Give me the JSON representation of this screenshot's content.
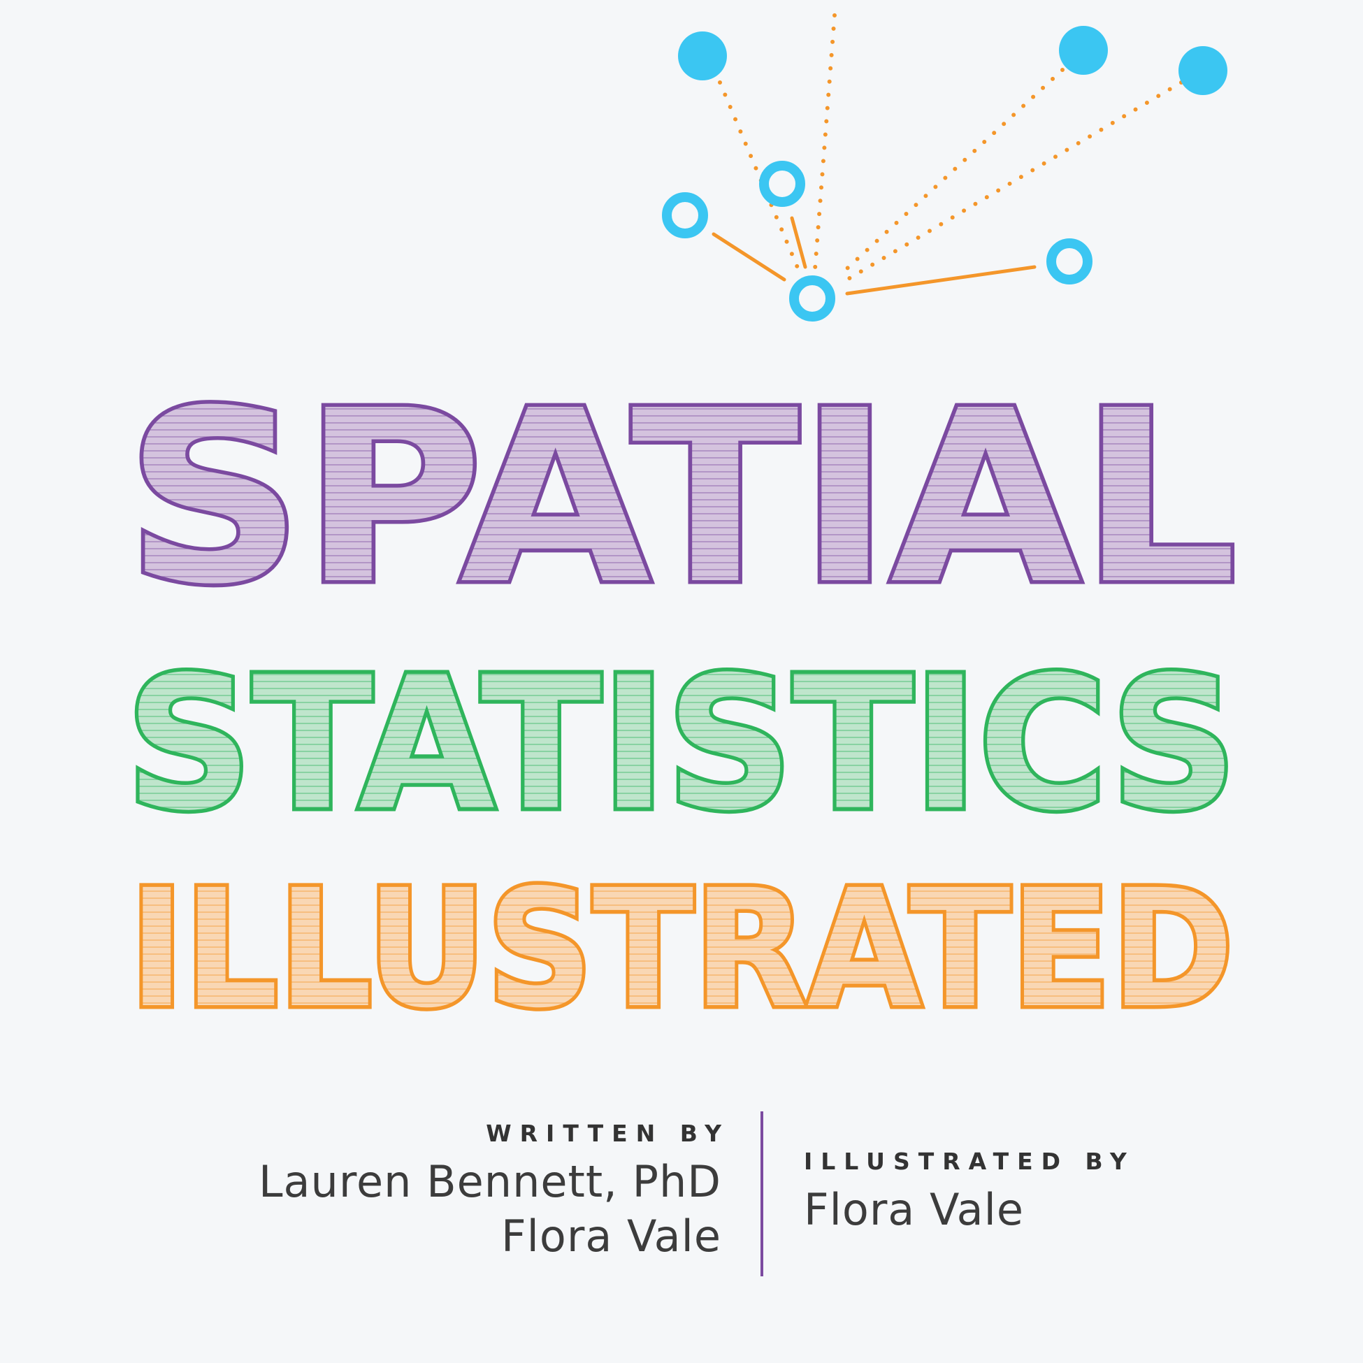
{
  "title": {
    "line1": "SPATIAL",
    "line2": "STATISTICS",
    "line3": "ILLUSTRATED"
  },
  "credits": {
    "written_label": "WRITTEN BY",
    "authors": [
      "Lauren Bennett, PhD",
      "Flora Vale"
    ],
    "illustrated_label": "ILLUSTRATED BY",
    "illustrator": "Flora Vale"
  },
  "colors": {
    "background": "#f5f7f9",
    "purple_stroke": "#7b4aa0",
    "purple_fill": "#d4c3de",
    "green_stroke": "#2fb55c",
    "green_fill": "#bfe5cc",
    "orange_stroke": "#f4962a",
    "orange_fill": "#f9d7b4",
    "node_blue": "#3bc6f2",
    "link_orange": "#f4962a"
  }
}
